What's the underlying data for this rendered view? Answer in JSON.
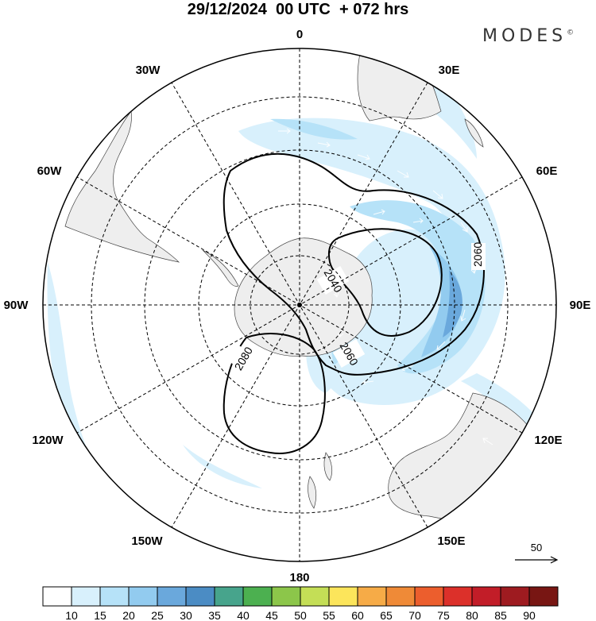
{
  "header": {
    "title": "29/12/2024  00 UTC  + 072 hrs",
    "brand": "MODES",
    "brand_mark": "©"
  },
  "map": {
    "projection": "south-polar-stereographic",
    "meridian_labels": [
      {
        "text": "0",
        "lon": 0
      },
      {
        "text": "30E",
        "lon": 30
      },
      {
        "text": "60E",
        "lon": 60
      },
      {
        "text": "90E",
        "lon": 90
      },
      {
        "text": "120E",
        "lon": 120
      },
      {
        "text": "150E",
        "lon": 150
      },
      {
        "text": "180",
        "lon": 180
      },
      {
        "text": "150W",
        "lon": -150
      },
      {
        "text": "120W",
        "lon": -120
      },
      {
        "text": "90W",
        "lon": -90
      },
      {
        "text": "60W",
        "lon": -60
      },
      {
        "text": "30W",
        "lon": -30
      }
    ],
    "contour_labels": [
      "2040",
      "2060",
      "2060",
      "2080"
    ],
    "reference_vector_label": "50",
    "colors": {
      "land": "#eeeeee",
      "coast": "#444444",
      "contour": "#000000",
      "grid": "#000000"
    }
  },
  "colorbar": {
    "labels": [
      "10",
      "15",
      "20",
      "25",
      "30",
      "35",
      "40",
      "45",
      "50",
      "55",
      "60",
      "65",
      "70",
      "75",
      "80",
      "85",
      "90"
    ],
    "colors": [
      "#ffffff",
      "#d8f0fc",
      "#b6e2f8",
      "#92cbef",
      "#6aa8dc",
      "#4b8cc4",
      "#47a48c",
      "#4cb050",
      "#8cc64a",
      "#c4de56",
      "#fce55b",
      "#f6ab47",
      "#ef8a37",
      "#ec5e2d",
      "#dc302a",
      "#c21d28",
      "#9e1b20",
      "#781613"
    ]
  }
}
